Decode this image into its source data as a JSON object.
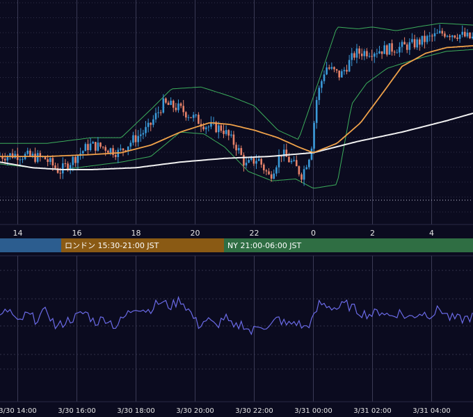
{
  "colors": {
    "background": "#0b0b1f",
    "grid": "#3a3a55",
    "candle_up": "#3a9ad9",
    "candle_down": "#e8836a",
    "ma_short": "#f0a24a",
    "ma_long": "#f2f2f2",
    "bollinger": "#3cae5c",
    "oscillator": "#6b6be8",
    "session_tokyo": "#2c5d8f",
    "session_london": "#8a5a14",
    "session_ny": "#2f6e43",
    "text": "#e6e6e6"
  },
  "sessions": [
    {
      "label": "",
      "color_key": "session_tokyo"
    },
    {
      "label": "ロンドン 15:30-21:00 JST",
      "color_key": "session_london"
    },
    {
      "label": "NY 21:00-06:00 JST",
      "color_key": "session_ny"
    }
  ],
  "chart_data": [
    {
      "type": "line",
      "subtype": "candlestick",
      "x_ticks": [
        "14",
        "16",
        "18",
        "20",
        "22",
        "0",
        "2",
        "4"
      ],
      "x_hours": [
        14,
        16,
        18,
        20,
        22,
        24,
        26,
        28
      ],
      "x_range_hours": [
        13.4,
        29.4
      ],
      "price_axis_labels": "not visible",
      "grid": true,
      "indicators": [
        "bollinger bands",
        "short moving average",
        "long moving average"
      ],
      "candles_path": [
        [
          13.4,
          0.27
        ],
        [
          14.0,
          0.28
        ],
        [
          14.5,
          0.27
        ],
        [
          15.0,
          0.26
        ],
        [
          15.5,
          0.19
        ],
        [
          16.0,
          0.26
        ],
        [
          16.5,
          0.33
        ],
        [
          17.0,
          0.32
        ],
        [
          17.5,
          0.29
        ],
        [
          18.0,
          0.36
        ],
        [
          18.5,
          0.42
        ],
        [
          19.0,
          0.55
        ],
        [
          19.5,
          0.53
        ],
        [
          20.0,
          0.48
        ],
        [
          20.5,
          0.43
        ],
        [
          21.0,
          0.42
        ],
        [
          21.5,
          0.32
        ],
        [
          21.8,
          0.22
        ],
        [
          22.2,
          0.26
        ],
        [
          22.6,
          0.16
        ],
        [
          23.0,
          0.29
        ],
        [
          23.4,
          0.23
        ],
        [
          23.7,
          0.17
        ],
        [
          24.0,
          0.3
        ],
        [
          24.2,
          0.58
        ],
        [
          24.5,
          0.75
        ],
        [
          25.0,
          0.7
        ],
        [
          25.5,
          0.82
        ],
        [
          26.0,
          0.83
        ],
        [
          26.5,
          0.84
        ],
        [
          27.0,
          0.85
        ],
        [
          27.5,
          0.87
        ],
        [
          28.0,
          0.9
        ],
        [
          28.5,
          0.93
        ],
        [
          29.0,
          0.92
        ],
        [
          29.4,
          0.9
        ]
      ],
      "ma_short_path": [
        [
          13.4,
          0.27
        ],
        [
          15.0,
          0.27
        ],
        [
          16.5,
          0.28
        ],
        [
          17.5,
          0.29
        ],
        [
          18.5,
          0.33
        ],
        [
          19.5,
          0.4
        ],
        [
          20.5,
          0.45
        ],
        [
          21.2,
          0.44
        ],
        [
          22.0,
          0.41
        ],
        [
          22.8,
          0.37
        ],
        [
          23.5,
          0.32
        ],
        [
          24.0,
          0.29
        ],
        [
          24.8,
          0.34
        ],
        [
          25.6,
          0.45
        ],
        [
          26.4,
          0.62
        ],
        [
          27.0,
          0.75
        ],
        [
          27.8,
          0.82
        ],
        [
          28.5,
          0.85
        ],
        [
          29.4,
          0.86
        ]
      ],
      "ma_long_path": [
        [
          13.4,
          0.24
        ],
        [
          14.5,
          0.21
        ],
        [
          15.5,
          0.2
        ],
        [
          16.5,
          0.2
        ],
        [
          18.0,
          0.21
        ],
        [
          19.5,
          0.24
        ],
        [
          21.0,
          0.26
        ],
        [
          22.5,
          0.27
        ],
        [
          24.0,
          0.29
        ],
        [
          25.5,
          0.35
        ],
        [
          27.0,
          0.4
        ],
        [
          28.5,
          0.46
        ],
        [
          29.4,
          0.5
        ]
      ],
      "bollinger_upper_path": [
        [
          13.4,
          0.34
        ],
        [
          15.0,
          0.34
        ],
        [
          16.5,
          0.37
        ],
        [
          17.5,
          0.37
        ],
        [
          18.5,
          0.52
        ],
        [
          19.2,
          0.63
        ],
        [
          20.2,
          0.64
        ],
        [
          21.2,
          0.59
        ],
        [
          22.0,
          0.54
        ],
        [
          22.8,
          0.41
        ],
        [
          23.5,
          0.36
        ],
        [
          24.2,
          0.68
        ],
        [
          24.8,
          0.96
        ],
        [
          25.5,
          0.95
        ],
        [
          26.0,
          0.96
        ],
        [
          26.8,
          0.94
        ],
        [
          27.5,
          0.96
        ],
        [
          28.3,
          0.98
        ],
        [
          29.4,
          0.97
        ]
      ],
      "bollinger_lower_path": [
        [
          13.4,
          0.23
        ],
        [
          14.5,
          0.21
        ],
        [
          15.5,
          0.2
        ],
        [
          16.5,
          0.22
        ],
        [
          17.5,
          0.24
        ],
        [
          18.5,
          0.27
        ],
        [
          19.5,
          0.4
        ],
        [
          20.3,
          0.39
        ],
        [
          21.0,
          0.32
        ],
        [
          21.8,
          0.19
        ],
        [
          22.6,
          0.14
        ],
        [
          23.4,
          0.15
        ],
        [
          24.0,
          0.1
        ],
        [
          24.8,
          0.12
        ],
        [
          25.3,
          0.55
        ],
        [
          25.8,
          0.66
        ],
        [
          26.5,
          0.74
        ],
        [
          27.5,
          0.79
        ],
        [
          28.5,
          0.83
        ],
        [
          29.4,
          0.84
        ]
      ]
    },
    {
      "type": "line",
      "subtype": "oscillator",
      "x_ticks": [
        "3/30 14:00",
        "3/30 16:00",
        "3/30 18:00",
        "3/30 20:00",
        "3/30 22:00",
        "3/31 00:00",
        "3/31 02:00",
        "3/31 04:00"
      ],
      "x_hours": [
        14,
        16,
        18,
        20,
        22,
        24,
        26,
        28
      ],
      "x_range_hours": [
        13.4,
        29.4
      ],
      "y_axis_labels": "not visible",
      "grid": true,
      "values_path": [
        [
          13.4,
          0.5
        ],
        [
          13.7,
          0.62
        ],
        [
          14.0,
          0.42
        ],
        [
          14.3,
          0.55
        ],
        [
          14.6,
          0.48
        ],
        [
          15.0,
          0.6
        ],
        [
          15.3,
          0.36
        ],
        [
          15.6,
          0.45
        ],
        [
          16.0,
          0.52
        ],
        [
          16.3,
          0.58
        ],
        [
          16.6,
          0.44
        ],
        [
          17.0,
          0.5
        ],
        [
          17.3,
          0.38
        ],
        [
          17.7,
          0.55
        ],
        [
          18.0,
          0.66
        ],
        [
          18.4,
          0.6
        ],
        [
          18.8,
          0.72
        ],
        [
          19.2,
          0.66
        ],
        [
          19.5,
          0.76
        ],
        [
          19.8,
          0.6
        ],
        [
          20.1,
          0.4
        ],
        [
          20.4,
          0.48
        ],
        [
          20.7,
          0.38
        ],
        [
          21.0,
          0.52
        ],
        [
          21.3,
          0.35
        ],
        [
          21.6,
          0.43
        ],
        [
          21.9,
          0.3
        ],
        [
          22.2,
          0.42
        ],
        [
          22.5,
          0.36
        ],
        [
          22.8,
          0.5
        ],
        [
          23.1,
          0.4
        ],
        [
          23.4,
          0.45
        ],
        [
          23.7,
          0.36
        ],
        [
          24.0,
          0.48
        ],
        [
          24.2,
          0.7
        ],
        [
          24.5,
          0.67
        ],
        [
          24.8,
          0.63
        ],
        [
          25.1,
          0.69
        ],
        [
          25.4,
          0.62
        ],
        [
          25.7,
          0.56
        ],
        [
          26.0,
          0.55
        ],
        [
          26.3,
          0.6
        ],
        [
          26.6,
          0.52
        ],
        [
          26.9,
          0.58
        ],
        [
          27.2,
          0.5
        ],
        [
          27.6,
          0.57
        ],
        [
          28.0,
          0.55
        ],
        [
          28.3,
          0.63
        ],
        [
          28.6,
          0.5
        ],
        [
          29.0,
          0.48
        ],
        [
          29.4,
          0.52
        ]
      ]
    }
  ]
}
